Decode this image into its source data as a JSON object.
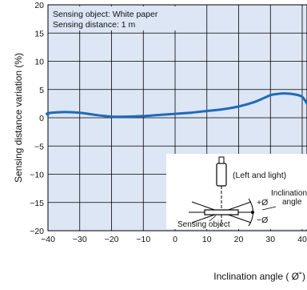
{
  "chart_data": {
    "type": "line",
    "xlabel": "Inclination angle ( Ø˚)",
    "ylabel": "Sensing distance variation (%)",
    "xlim": [
      -40,
      40
    ],
    "ylim": [
      -20,
      20
    ],
    "x_ticks": [
      "−40",
      "−30",
      "−20",
      "−10",
      "0",
      "10",
      "20",
      "30",
      "40"
    ],
    "y_ticks": [
      "−20",
      "−15",
      "−10",
      "−5",
      "0",
      "5",
      "10",
      "15",
      "20"
    ],
    "grid": true,
    "plot_background": "#dde6f5",
    "line_color": "#1f6ab8",
    "conditions": [
      "Sensing object: White paper",
      "Sensing distance: 1 m"
    ],
    "series": [
      {
        "x": [
          -44,
          -40,
          -35,
          -30,
          -25,
          -20,
          -15,
          -10,
          -5,
          0,
          5,
          10,
          15,
          20,
          25,
          28,
          30,
          32,
          35,
          38,
          40,
          44
        ],
        "y": [
          0.5,
          0.8,
          1.0,
          0.9,
          0.5,
          0.2,
          0.2,
          0.3,
          0.5,
          0.7,
          0.9,
          1.2,
          1.5,
          2.0,
          2.8,
          3.5,
          4.0,
          4.2,
          4.3,
          4.1,
          3.7,
          2.5
        ]
      }
    ],
    "inset": {
      "orientation_label": "(Left and light)",
      "angle_label": "Inclination\nangle",
      "plus_label": "+Ø",
      "minus_label": "−Ø",
      "object_label": "Sensing object"
    }
  }
}
